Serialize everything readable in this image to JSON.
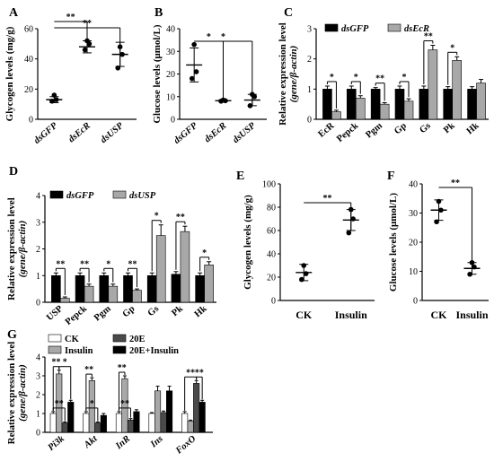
{
  "colors": {
    "black": "#000000",
    "grey": "#a8a8a8",
    "dark": "#4a4a4a",
    "white": "#ffffff"
  },
  "chart_data": [
    {
      "panel": "A",
      "type": "scatter",
      "ylabel": "Glycogen levels (mg/g)",
      "categories": [
        "dsGFP",
        "dsEcR",
        "dsUSP"
      ],
      "yticks": [
        0,
        20,
        40,
        60
      ],
      "ylim": [
        0,
        60
      ],
      "points": [
        [
          12,
          13,
          16
        ],
        [
          46,
          50,
          52
        ],
        [
          34,
          43,
          48
        ]
      ],
      "mean": [
        13,
        48,
        43
      ],
      "sd": [
        2,
        4,
        8
      ],
      "sig": [
        {
          "from": 0,
          "to": 1,
          "label": "**"
        },
        {
          "from": 0,
          "to": 2,
          "label": "**"
        }
      ]
    },
    {
      "panel": "B",
      "type": "scatter",
      "ylabel": "Glucose levels (μmol/L)",
      "categories": [
        "dsGFP",
        "dsEcR",
        "dsUSP"
      ],
      "yticks": [
        0,
        10,
        20,
        30,
        40
      ],
      "ylim": [
        0,
        40
      ],
      "points": [
        [
          18,
          21,
          33
        ],
        [
          8,
          8.2,
          8.5
        ],
        [
          6,
          10,
          11
        ]
      ],
      "mean": [
        24,
        8.2,
        8.5
      ],
      "sd": [
        7.5,
        0.4,
        2.5
      ],
      "sig": [
        {
          "from": 0,
          "to": 1,
          "label": "*"
        },
        {
          "from": 0,
          "to": 2,
          "label": "*"
        }
      ]
    },
    {
      "panel": "C",
      "type": "bar",
      "ylabel": "Relative expression level",
      "ylabel2": "(gene/β-actin)",
      "categories": [
        "EcR",
        "Pepck",
        "Pgm",
        "Gp",
        "Gs",
        "Pk",
        "Hk"
      ],
      "yticks": [
        0,
        1,
        2,
        3
      ],
      "ylim": [
        0,
        3
      ],
      "series": [
        {
          "name": "dsGFP",
          "values": [
            1.0,
            1.0,
            1.0,
            1.0,
            1.0,
            1.0,
            1.0
          ],
          "errors": [
            0.1,
            0.1,
            0.05,
            0.1,
            0.1,
            0.08,
            0.08
          ]
        },
        {
          "name": "dsEcR",
          "values": [
            0.25,
            0.7,
            0.5,
            0.6,
            2.3,
            1.95,
            1.2
          ],
          "errors": [
            0.05,
            0.08,
            0.05,
            0.08,
            0.15,
            0.12,
            0.12
          ]
        }
      ],
      "sig": [
        "*",
        "*",
        "**",
        "*",
        "**",
        "*",
        ""
      ]
    },
    {
      "panel": "D",
      "type": "bar",
      "ylabel": "Relative expression level",
      "ylabel2": "(gene/β-actin)",
      "categories": [
        "USP",
        "Pepck",
        "Pgm",
        "Gp",
        "Gs",
        "Pk",
        "Hk"
      ],
      "yticks": [
        0,
        1,
        2,
        3,
        4
      ],
      "ylim": [
        0,
        4
      ],
      "series": [
        {
          "name": "dsGFP",
          "values": [
            1.0,
            1.0,
            1.0,
            1.0,
            1.0,
            1.05,
            1.0
          ],
          "errors": [
            0.1,
            0.1,
            0.1,
            0.1,
            0.1,
            0.1,
            0.1
          ]
        },
        {
          "name": "dsUSP",
          "values": [
            0.15,
            0.6,
            0.6,
            0.45,
            2.5,
            2.65,
            1.4
          ],
          "errors": [
            0.05,
            0.08,
            0.08,
            0.05,
            0.4,
            0.2,
            0.12
          ]
        }
      ],
      "sig": [
        "**",
        "**",
        "*",
        "**",
        "*",
        "**",
        "*"
      ]
    },
    {
      "panel": "E",
      "type": "scatter",
      "ylabel": "Glycogen levels (mg/g)",
      "categories": [
        "CK",
        "Insulin"
      ],
      "yticks": [
        0,
        20,
        40,
        60,
        80,
        100
      ],
      "ylim": [
        0,
        100
      ],
      "points": [
        [
          18,
          23,
          30
        ],
        [
          58,
          70,
          78
        ]
      ],
      "mean": [
        24,
        69
      ],
      "sd": [
        7,
        9
      ],
      "sig": [
        {
          "from": 0,
          "to": 1,
          "label": "**"
        }
      ]
    },
    {
      "panel": "F",
      "type": "scatter",
      "ylabel": "Glucose levels (μmol/L)",
      "categories": [
        "CK",
        "Insulin"
      ],
      "yticks": [
        0,
        10,
        20,
        30,
        40
      ],
      "ylim": [
        0,
        40
      ],
      "points": [
        [
          27,
          31,
          34
        ],
        [
          9,
          11.5,
          13
        ]
      ],
      "mean": [
        31,
        11
      ],
      "sd": [
        3.5,
        2
      ],
      "sig": [
        {
          "from": 0,
          "to": 1,
          "label": "**"
        }
      ]
    },
    {
      "panel": "G",
      "type": "bar",
      "ylabel": "Relative expression level",
      "ylabel2": "(gene/β-actin)",
      "categories": [
        "Pi3k",
        "Akt",
        "InR",
        "Ins",
        "FoxO"
      ],
      "yticks": [
        0,
        1,
        2,
        3,
        4
      ],
      "ylim": [
        0,
        4
      ],
      "series": [
        {
          "name": "CK",
          "values": [
            1.0,
            1.0,
            1.0,
            1.0,
            1.0
          ],
          "errors": [
            0.1,
            0.1,
            0.1,
            0.05,
            0.1
          ]
        },
        {
          "name": "20E",
          "values": [
            0.5,
            0.5,
            0.65,
            1.05,
            2.6
          ],
          "errors": [
            0.05,
            0.05,
            0.08,
            0.08,
            0.15
          ]
        },
        {
          "name": "Insulin",
          "values": [
            3.1,
            2.75,
            2.85,
            2.2,
            0.6
          ],
          "errors": [
            0.2,
            0.15,
            0.15,
            0.25,
            0.05
          ]
        },
        {
          "name": "20E+Insulin",
          "values": [
            1.6,
            0.9,
            1.1,
            2.2,
            1.6
          ],
          "errors": [
            0.1,
            0.1,
            0.1,
            0.25,
            0.1
          ]
        }
      ],
      "sig_pairs": [
        {
          "cat": 0,
          "from": 0,
          "to": 1,
          "label": "**"
        },
        {
          "cat": 0,
          "from": 0,
          "to": 2,
          "label": "**"
        },
        {
          "cat": 0,
          "from": 2,
          "to": 3,
          "label": "*"
        },
        {
          "cat": 1,
          "from": 0,
          "to": 1,
          "label": "*"
        },
        {
          "cat": 1,
          "from": 0,
          "to": 2,
          "label": "**"
        },
        {
          "cat": 2,
          "from": 0,
          "to": 1,
          "label": "**"
        },
        {
          "cat": 2,
          "from": 0,
          "to": 2,
          "label": "**"
        },
        {
          "cat": 4,
          "from": 0,
          "to": 1,
          "label": "**"
        },
        {
          "cat": 4,
          "from": 1,
          "to": 3,
          "label": "**"
        }
      ]
    }
  ]
}
